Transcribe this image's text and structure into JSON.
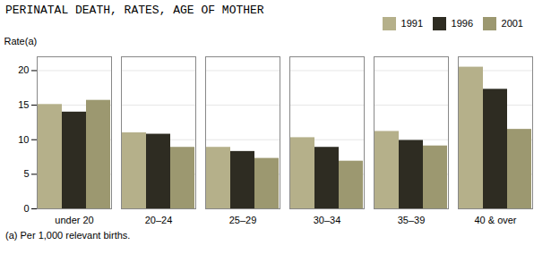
{
  "chart_data": {
    "type": "bar",
    "title": "PERINATAL DEATH, RATES, AGE OF MOTHER",
    "ylabel": "Rate(a)",
    "footnote": "(a) Per 1,000 relevant births.",
    "categories": [
      "under 20",
      "20–24",
      "25–29",
      "30–34",
      "35–39",
      "40 & over"
    ],
    "series": [
      {
        "name": "1991",
        "color": "#b5b08a",
        "values": [
          15.1,
          11.0,
          8.9,
          10.3,
          11.2,
          20.5
        ]
      },
      {
        "name": "1996",
        "color": "#2e2c22",
        "values": [
          14.0,
          10.8,
          8.3,
          8.9,
          9.9,
          17.3
        ]
      },
      {
        "name": "2001",
        "color": "#9c9870",
        "values": [
          15.7,
          8.9,
          7.3,
          6.9,
          9.1,
          11.5
        ]
      }
    ],
    "ylim": [
      0,
      22
    ],
    "yticks": [
      0,
      5,
      10,
      15,
      20
    ],
    "grid": true,
    "legend": "upper right"
  }
}
